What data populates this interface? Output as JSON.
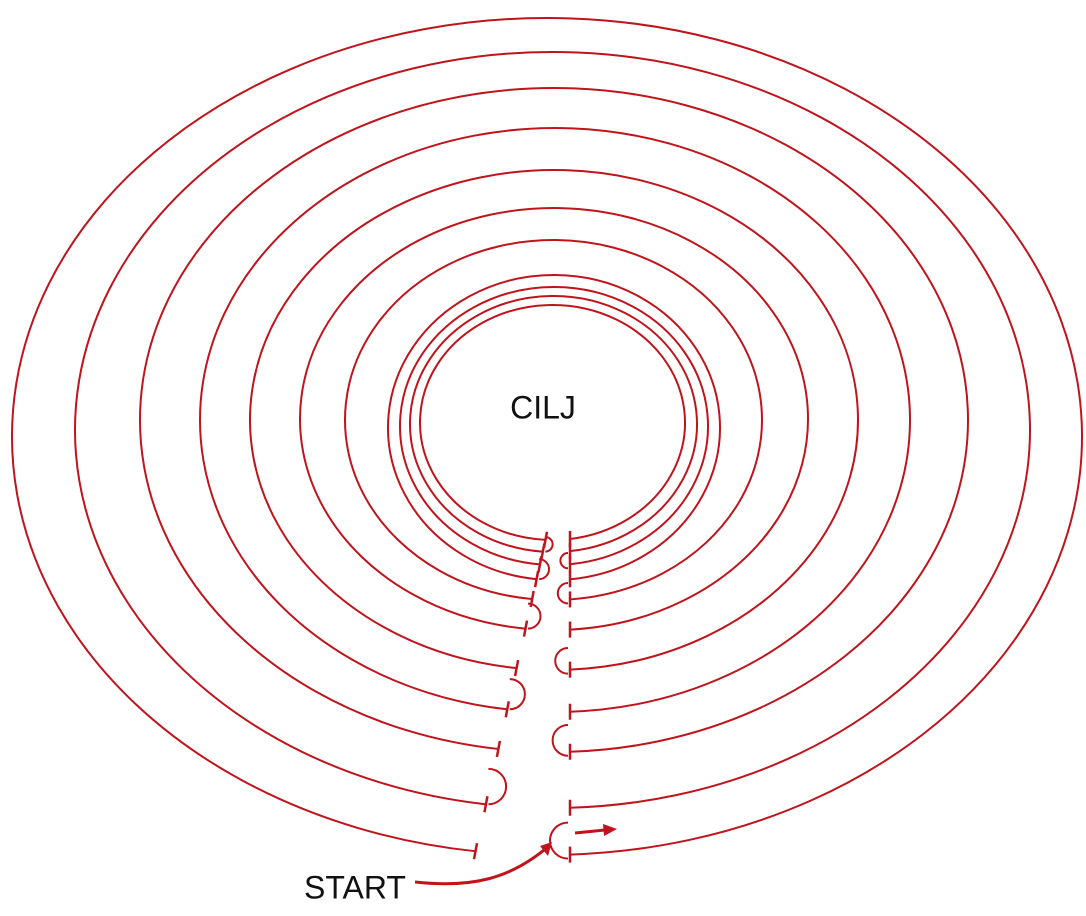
{
  "labels": {
    "goal": "CILJ",
    "start": "START"
  }
}
